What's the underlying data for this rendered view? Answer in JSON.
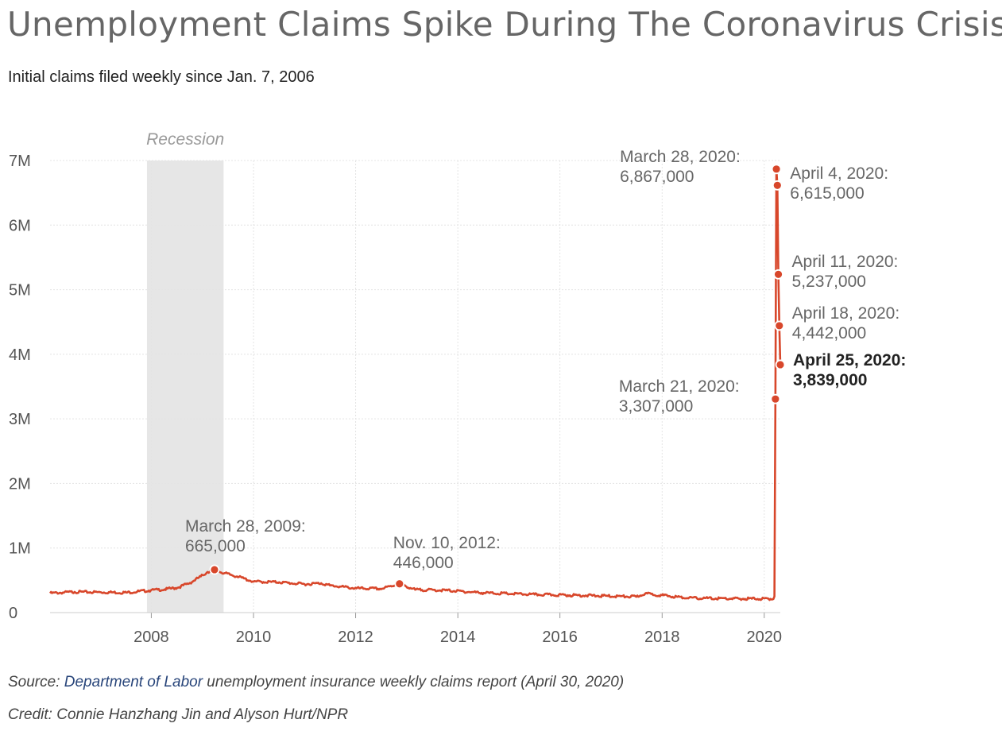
{
  "header": {
    "title": "Unemployment Claims Spike During The Coronavirus Crisis",
    "subtitle": "Initial claims filed weekly since Jan. 7, 2006"
  },
  "footer": {
    "source_prefix": "Source: ",
    "source_link": "Department of Labor",
    "source_suffix": " unemployment insurance weekly claims report (April 30, 2020)",
    "credit": "Credit: Connie Hanzhang Jin and Alyson Hurt/NPR"
  },
  "colors": {
    "line": "#d8472b",
    "recession": "#e6e6e6",
    "grid": "#e4e4e4",
    "link": "#28457a"
  },
  "chart_data": {
    "type": "line",
    "title": "Unemployment Claims Spike During The Coronavirus Crisis",
    "subtitle": "Initial claims filed weekly since Jan. 7, 2006",
    "xlabel": "",
    "ylabel": "",
    "xlim": [
      "2006-01-07",
      "2020-04-25"
    ],
    "ylim": [
      0,
      7000000
    ],
    "grid": true,
    "legend": "none",
    "y_ticks": [
      {
        "value": 0,
        "label": "0"
      },
      {
        "value": 1000000,
        "label": "1M"
      },
      {
        "value": 2000000,
        "label": "2M"
      },
      {
        "value": 3000000,
        "label": "3M"
      },
      {
        "value": 4000000,
        "label": "4M"
      },
      {
        "value": 5000000,
        "label": "5M"
      },
      {
        "value": 6000000,
        "label": "6M"
      },
      {
        "value": 7000000,
        "label": "7M"
      }
    ],
    "x_ticks": [
      {
        "value": "2008-01-01",
        "label": "2008"
      },
      {
        "value": "2010-01-01",
        "label": "2010"
      },
      {
        "value": "2012-01-01",
        "label": "2012"
      },
      {
        "value": "2014-01-01",
        "label": "2014"
      },
      {
        "value": "2016-01-01",
        "label": "2016"
      },
      {
        "value": "2018-01-01",
        "label": "2018"
      },
      {
        "value": "2020-01-01",
        "label": "2020"
      }
    ],
    "recession": {
      "label": "Recession",
      "start": "2007-12-01",
      "end": "2009-06-01"
    },
    "series": [
      {
        "color": "#d8472b",
        "points": [
          [
            "2006-01-07",
            300000
          ],
          [
            "2006-07-01",
            320000
          ],
          [
            "2007-01-06",
            315000
          ],
          [
            "2007-07-07",
            310000
          ],
          [
            "2007-12-29",
            345000
          ],
          [
            "2008-04-05",
            360000
          ],
          [
            "2008-07-05",
            385000
          ],
          [
            "2008-10-04",
            460000
          ],
          [
            "2008-12-20",
            560000
          ],
          [
            "2009-02-07",
            630000
          ],
          [
            "2009-03-28",
            665000
          ],
          [
            "2009-06-06",
            610000
          ],
          [
            "2009-09-05",
            560000
          ],
          [
            "2010-01-02",
            480000
          ],
          [
            "2010-07-03",
            470000
          ],
          [
            "2011-01-01",
            440000
          ],
          [
            "2011-04-30",
            455000
          ],
          [
            "2011-07-02",
            420000
          ],
          [
            "2012-01-07",
            375000
          ],
          [
            "2012-07-07",
            370000
          ],
          [
            "2012-11-10",
            446000
          ],
          [
            "2013-03-02",
            355000
          ],
          [
            "2013-10-05",
            345000
          ],
          [
            "2014-07-05",
            305000
          ],
          [
            "2015-07-04",
            280000
          ],
          [
            "2016-07-02",
            265000
          ],
          [
            "2017-07-01",
            245000
          ],
          [
            "2017-09-02",
            295000
          ],
          [
            "2018-06-30",
            225000
          ],
          [
            "2019-07-06",
            215000
          ],
          [
            "2020-02-01",
            215000
          ],
          [
            "2020-03-07",
            211000
          ],
          [
            "2020-03-14",
            251000
          ],
          [
            "2020-03-21",
            3307000
          ],
          [
            "2020-03-28",
            6867000
          ],
          [
            "2020-04-04",
            6615000
          ],
          [
            "2020-04-11",
            5237000
          ],
          [
            "2020-04-18",
            4442000
          ],
          [
            "2020-04-25",
            3839000
          ]
        ]
      }
    ],
    "annotations": [
      {
        "date": "2009-03-28",
        "value": 665000,
        "label": "March 28, 2009:",
        "value_label": "665,000",
        "bold": false
      },
      {
        "date": "2012-11-10",
        "value": 446000,
        "label": "Nov. 10, 2012:",
        "value_label": "446,000",
        "bold": false
      },
      {
        "date": "2020-03-21",
        "value": 3307000,
        "label": "March 21, 2020:",
        "value_label": "3,307,000",
        "bold": false
      },
      {
        "date": "2020-03-28",
        "value": 6867000,
        "label": "March 28, 2020:",
        "value_label": "6,867,000",
        "bold": false
      },
      {
        "date": "2020-04-04",
        "value": 6615000,
        "label": "April 4, 2020:",
        "value_label": "6,615,000",
        "bold": false
      },
      {
        "date": "2020-04-11",
        "value": 5237000,
        "label": "April 11, 2020:",
        "value_label": "5,237,000",
        "bold": false
      },
      {
        "date": "2020-04-18",
        "value": 4442000,
        "label": "April 18, 2020:",
        "value_label": "4,442,000",
        "bold": false
      },
      {
        "date": "2020-04-25",
        "value": 3839000,
        "label": "April 25, 2020:",
        "value_label": "3,839,000",
        "bold": true
      }
    ]
  }
}
